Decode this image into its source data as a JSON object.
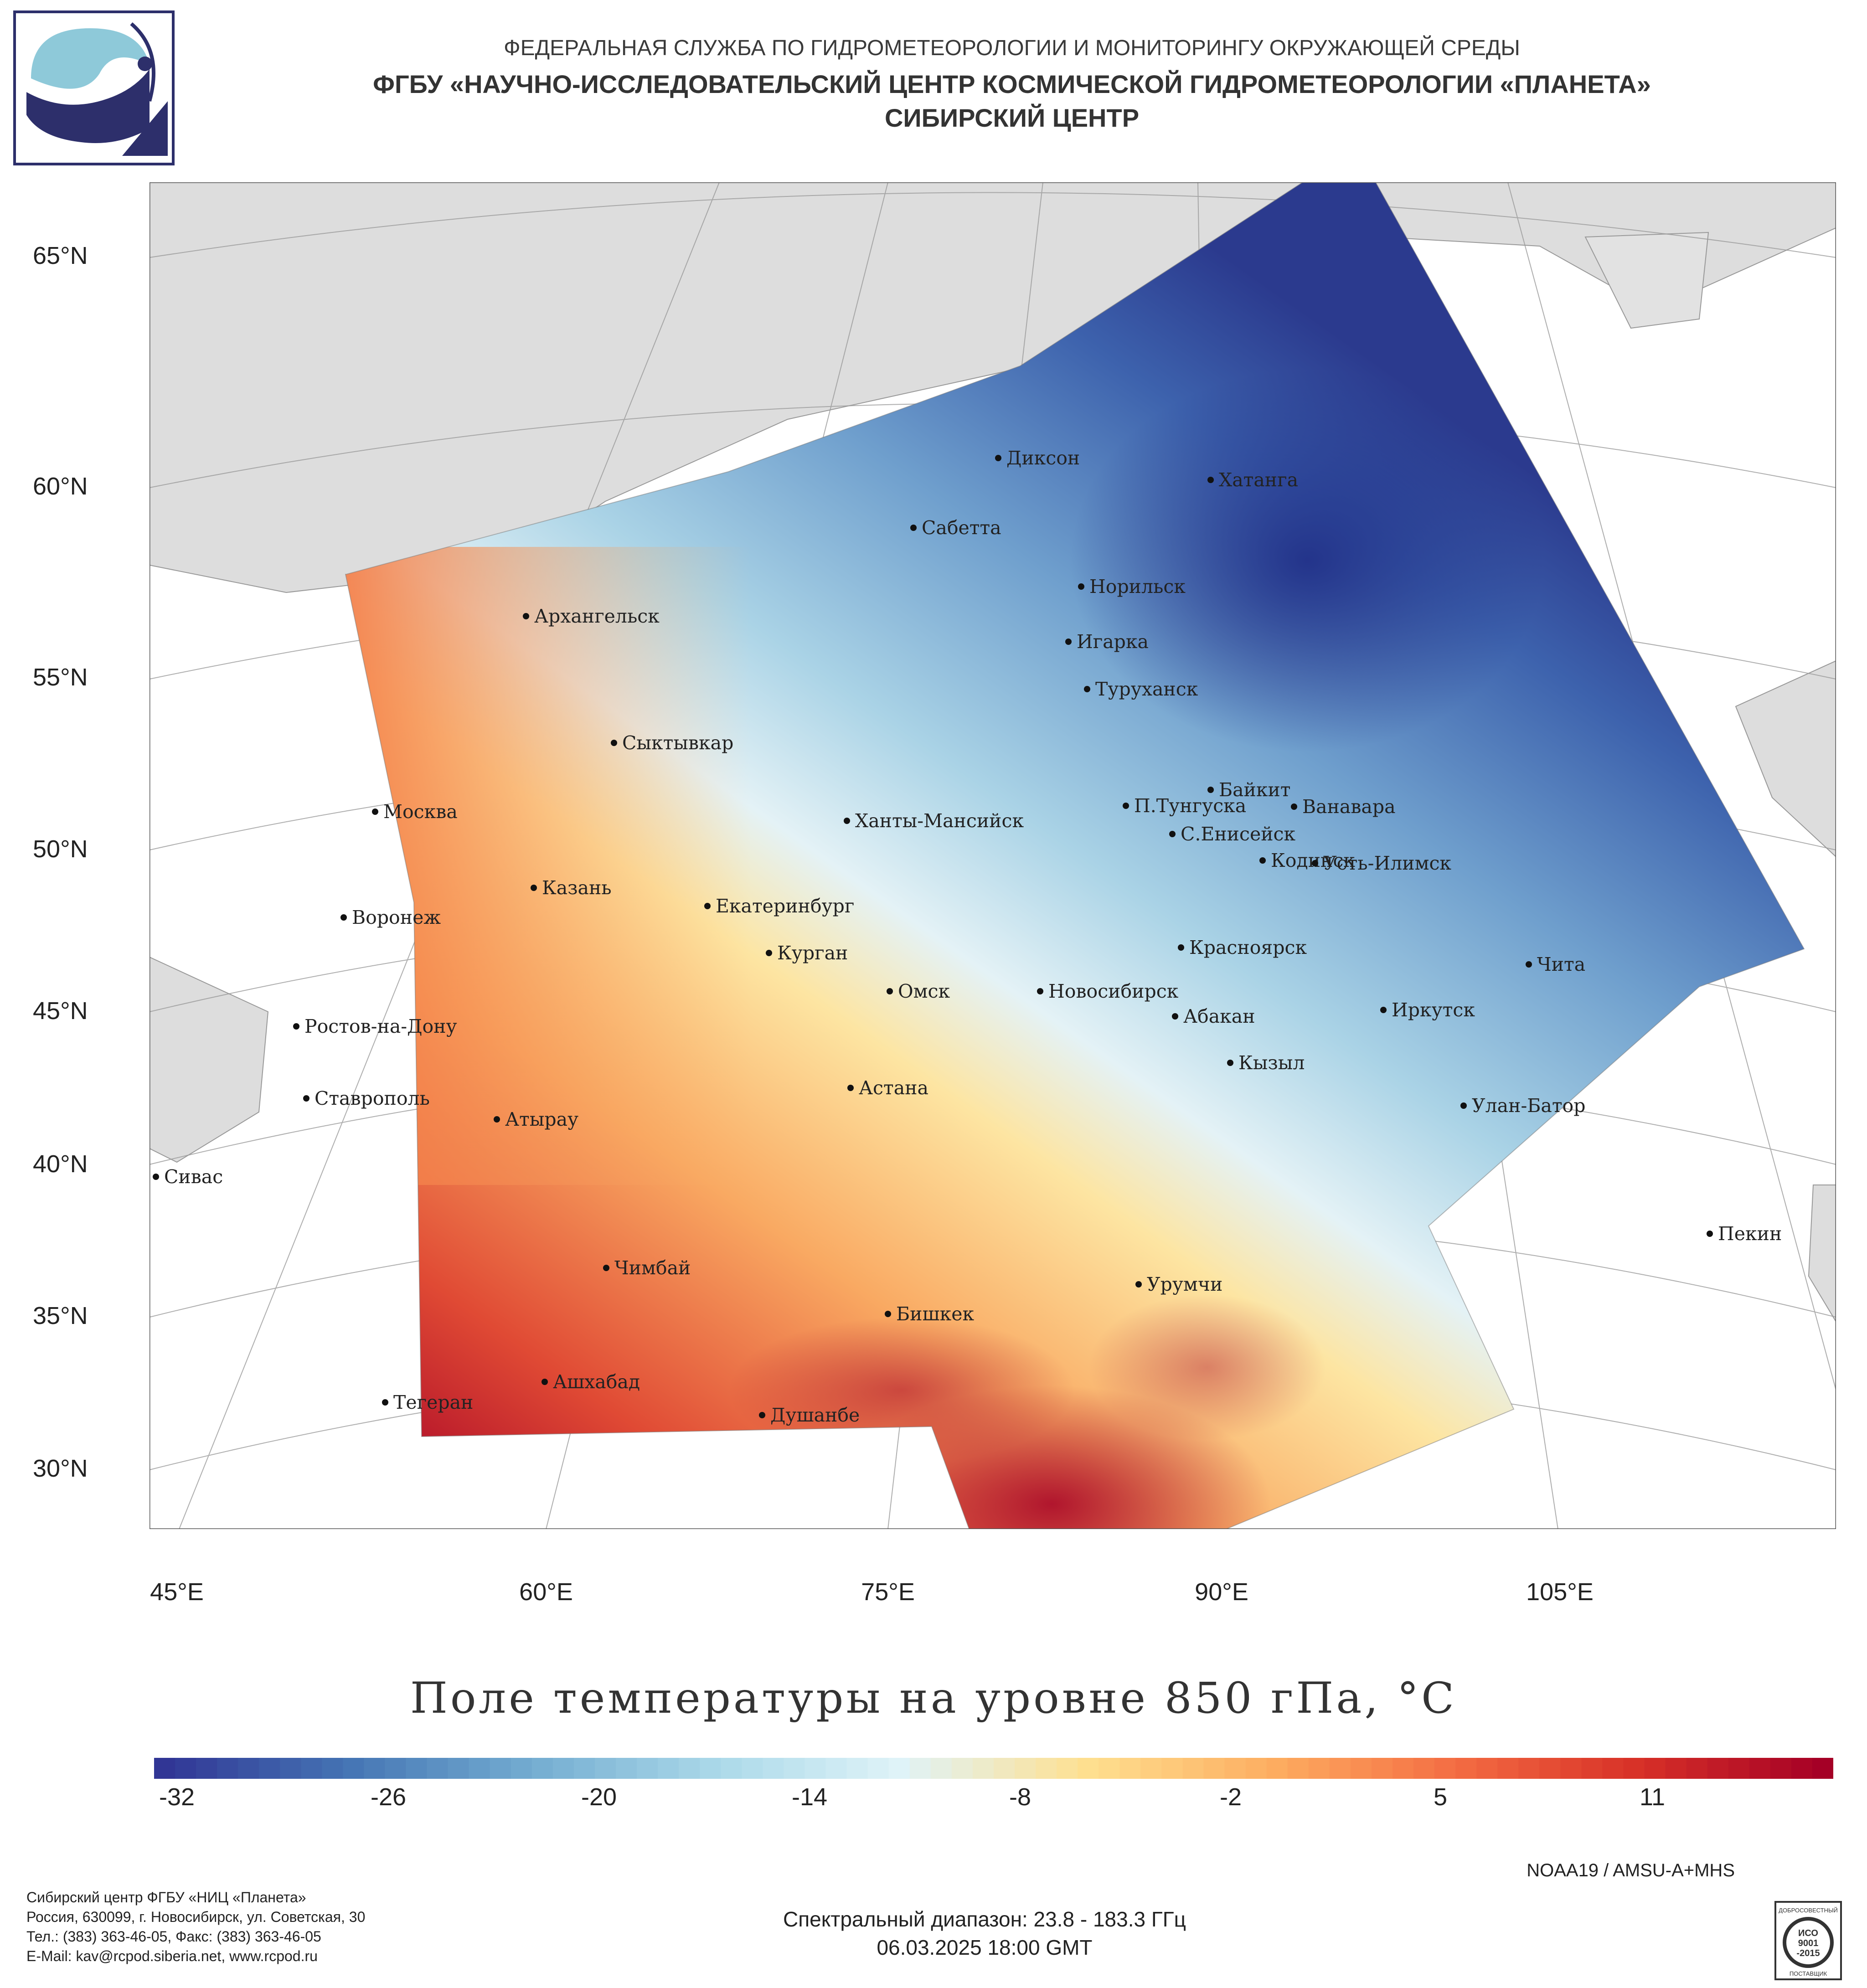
{
  "header": {
    "line1": "ФЕДЕРАЛЬНАЯ СЛУЖБА ПО ГИДРОМЕТЕОРОЛОГИИ И МОНИТОРИНГУ ОКРУЖАЮЩЕЙ СРЕДЫ",
    "line2": "ФГБУ «НАУЧНО-ИССЛЕДОВАТЕЛЬСКИЙ ЦЕНТР КОСМИЧЕСКОЙ ГИДРОМЕТЕОРОЛОГИИ «ПЛАНЕТА»",
    "line3": "СИБИРСКИЙ ЦЕНТР"
  },
  "logo": {
    "icon": "planeta-logo-icon",
    "colors": {
      "navy": "#2d2f6b",
      "light_blue": "#8ec9d9"
    }
  },
  "map": {
    "latitude_labels": [
      "65°N",
      "60°N",
      "55°N",
      "50°N",
      "45°N",
      "40°N",
      "35°N",
      "30°N"
    ],
    "longitude_labels": [
      "45°E",
      "60°E",
      "75°E",
      "90°E",
      "105°E"
    ],
    "cities": [
      {
        "name": "Диксон"
      },
      {
        "name": "Хатанга"
      },
      {
        "name": "Сабетта"
      },
      {
        "name": "Архангельск"
      },
      {
        "name": "Норильск"
      },
      {
        "name": "Игарка"
      },
      {
        "name": "Туруханск"
      },
      {
        "name": "Сыктывкар"
      },
      {
        "name": "Байкит"
      },
      {
        "name": "П.Тунгуска"
      },
      {
        "name": "Ванавара"
      },
      {
        "name": "Москва"
      },
      {
        "name": "Ханты-Мансийск"
      },
      {
        "name": "С.Енисейск"
      },
      {
        "name": "Кодинск"
      },
      {
        "name": "Усть-Илимск"
      },
      {
        "name": "Казань"
      },
      {
        "name": "Екатеринбург"
      },
      {
        "name": "Воронеж"
      },
      {
        "name": "Курган"
      },
      {
        "name": "Красноярск"
      },
      {
        "name": "Чита"
      },
      {
        "name": "Омск"
      },
      {
        "name": "Новосибирск"
      },
      {
        "name": "Иркутск"
      },
      {
        "name": "Абакан"
      },
      {
        "name": "Ростов-на-Дону"
      },
      {
        "name": "Кызыл"
      },
      {
        "name": "Астана"
      },
      {
        "name": "Ставрополь"
      },
      {
        "name": "Улан-Батор"
      },
      {
        "name": "Атырау"
      },
      {
        "name": "Сивас"
      },
      {
        "name": "Пекин"
      },
      {
        "name": "Чимбай"
      },
      {
        "name": "Урумчи"
      },
      {
        "name": "Бишкек"
      },
      {
        "name": "Ашхабад"
      },
      {
        "name": "Тегеран"
      },
      {
        "name": "Душанбе"
      }
    ]
  },
  "title": "Поле температуры на уровне 850 гПа, °С",
  "colorbar": {
    "ticks": [
      "-32",
      "-26",
      "-20",
      "-14",
      "-8",
      "-2",
      "5",
      "11"
    ],
    "colors": [
      "#313695",
      "#4575b4",
      "#74add1",
      "#abd9e9",
      "#e0f3f8",
      "#fee090",
      "#fdae61",
      "#f46d43",
      "#d73027",
      "#a50026"
    ]
  },
  "source": "NOAA19 / AMSU-A+MHS",
  "footer": {
    "org": "Сибирский центр ФГБУ «НИЦ «Планета»",
    "address": "Россия, 630099, г. Новосибирск, ул. Советская, 30",
    "phone": "Тел.: (383) 363-46-05, Факс: (383) 363-46-05",
    "email": "E-Mail: kav@rcpod.siberia.net, www.rcpod.ru",
    "spectral": "Спектральный диапазон: 23.8 - 183.3 ГГц",
    "datetime": "06.03.2025 18:00 GMT"
  },
  "iso_badge": {
    "top": "ДОБРОСОВЕСТНЫЙ",
    "line1": "ИСО",
    "line2": "9001",
    "line3": "-2015",
    "bottom": "ПОСТАВЩИК"
  }
}
